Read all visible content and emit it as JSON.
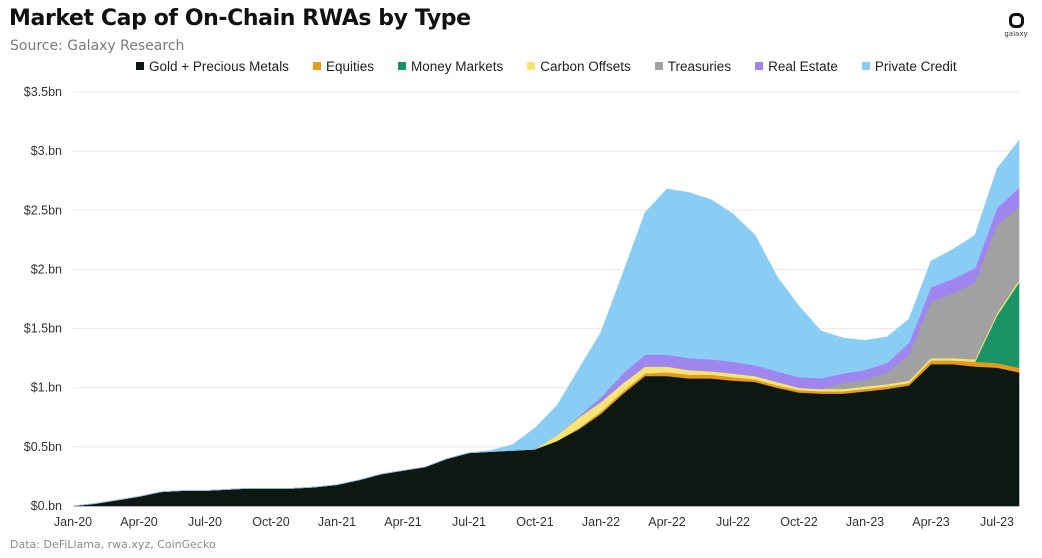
{
  "title": "Market Cap of On-Chain RWAs by Type",
  "subtitle": "Source: Galaxy Research",
  "logo_text": "galaxy",
  "source_note": "Data: DeFiLlama, rwa.xyz, CoinGecko",
  "chart_data": {
    "type": "area",
    "stacked": true,
    "title": "Market Cap of On-Chain RWAs by Type",
    "xlabel": "",
    "ylabel": "",
    "ylim": [
      0,
      3.5
    ],
    "grid": true,
    "legend_position": "top",
    "y_tick_values": [
      0,
      0.5,
      1,
      1.5,
      2,
      2.5,
      3,
      3.5
    ],
    "y_tick_labels": [
      "$0.bn",
      "$0.5bn",
      "$1.bn",
      "$1.5bn",
      "$2.bn",
      "$2.5bn",
      "$3.bn",
      "$3.5bn"
    ],
    "x_tick_labels": [
      "Jan-20",
      "Apr-20",
      "Jul-20",
      "Oct-20",
      "Jan-21",
      "Apr-21",
      "Jul-21",
      "Oct-21",
      "Jan-22",
      "Apr-22",
      "Jul-22",
      "Oct-22",
      "Jan-23",
      "Apr-23",
      "Jul-23"
    ],
    "x": [
      "2020-01",
      "2020-02",
      "2020-03",
      "2020-04",
      "2020-05",
      "2020-06",
      "2020-07",
      "2020-08",
      "2020-09",
      "2020-10",
      "2020-11",
      "2020-12",
      "2021-01",
      "2021-02",
      "2021-03",
      "2021-04",
      "2021-05",
      "2021-06",
      "2021-07",
      "2021-08",
      "2021-09",
      "2021-10",
      "2021-11",
      "2021-12",
      "2022-01",
      "2022-02",
      "2022-03",
      "2022-04",
      "2022-05",
      "2022-06",
      "2022-07",
      "2022-08",
      "2022-09",
      "2022-10",
      "2022-11",
      "2022-12",
      "2023-01",
      "2023-02",
      "2023-03",
      "2023-04",
      "2023-05",
      "2023-06",
      "2023-07",
      "2023-08"
    ],
    "series": [
      {
        "name": "Gold + Precious Metals",
        "color": "#0e1813",
        "values": [
          0,
          0.02,
          0.05,
          0.08,
          0.12,
          0.13,
          0.13,
          0.14,
          0.15,
          0.15,
          0.15,
          0.16,
          0.18,
          0.22,
          0.27,
          0.3,
          0.33,
          0.4,
          0.45,
          0.46,
          0.47,
          0.48,
          0.55,
          0.65,
          0.78,
          0.95,
          1.1,
          1.1,
          1.08,
          1.08,
          1.06,
          1.05,
          1.0,
          0.96,
          0.95,
          0.95,
          0.97,
          0.99,
          1.02,
          1.2,
          1.2,
          1.18,
          1.17,
          1.13
        ]
      },
      {
        "name": "Equities",
        "color": "#e59a1c",
        "values": [
          0,
          0,
          0,
          0,
          0,
          0,
          0,
          0,
          0,
          0,
          0,
          0,
          0,
          0,
          0,
          0,
          0,
          0,
          0,
          0,
          0,
          0,
          0,
          0.01,
          0.02,
          0.02,
          0.02,
          0.03,
          0.03,
          0.03,
          0.03,
          0.02,
          0.02,
          0.02,
          0.02,
          0.02,
          0.02,
          0.02,
          0.02,
          0.03,
          0.03,
          0.04,
          0.04,
          0.04
        ]
      },
      {
        "name": "Money Markets",
        "color": "#1a9467",
        "values": [
          0,
          0,
          0,
          0,
          0,
          0,
          0,
          0,
          0,
          0,
          0,
          0,
          0,
          0,
          0,
          0,
          0,
          0,
          0,
          0,
          0,
          0,
          0,
          0,
          0,
          0,
          0,
          0,
          0,
          0,
          0,
          0,
          0,
          0,
          0,
          0,
          0,
          0,
          0,
          0,
          0,
          0,
          0.4,
          0.72
        ]
      },
      {
        "name": "Carbon Offsets",
        "color": "#f8e474",
        "values": [
          0,
          0,
          0,
          0,
          0,
          0,
          0,
          0,
          0,
          0,
          0,
          0,
          0,
          0,
          0,
          0,
          0,
          0,
          0,
          0,
          0,
          0,
          0.05,
          0.09,
          0.08,
          0.07,
          0.06,
          0.05,
          0.04,
          0.03,
          0.03,
          0.03,
          0.03,
          0.02,
          0.02,
          0.02,
          0.02,
          0.02,
          0.02,
          0.02,
          0.02,
          0.02,
          0.02,
          0.02
        ]
      },
      {
        "name": "Treasuries",
        "color": "#a1a1a1",
        "values": [
          0,
          0,
          0,
          0,
          0,
          0,
          0,
          0,
          0,
          0,
          0,
          0,
          0,
          0,
          0,
          0,
          0,
          0,
          0,
          0,
          0,
          0,
          0,
          0,
          0,
          0,
          0,
          0,
          0,
          0,
          0,
          0,
          0,
          0,
          0,
          0.05,
          0.06,
          0.1,
          0.22,
          0.48,
          0.55,
          0.65,
          0.75,
          0.62
        ]
      },
      {
        "name": "Real Estate",
        "color": "#9f85ef",
        "values": [
          0,
          0,
          0,
          0,
          0,
          0,
          0,
          0,
          0,
          0,
          0,
          0,
          0,
          0,
          0,
          0,
          0,
          0,
          0,
          0,
          0,
          0,
          0,
          0.01,
          0.04,
          0.08,
          0.1,
          0.1,
          0.1,
          0.1,
          0.1,
          0.09,
          0.09,
          0.09,
          0.09,
          0.08,
          0.08,
          0.08,
          0.1,
          0.12,
          0.12,
          0.12,
          0.14,
          0.16
        ]
      },
      {
        "name": "Private Credit",
        "color": "#89cdf5",
        "values": [
          0,
          0,
          0,
          0,
          0,
          0,
          0,
          0,
          0,
          0,
          0,
          0,
          0,
          0,
          0,
          0,
          0,
          0,
          0,
          0.01,
          0.05,
          0.18,
          0.25,
          0.4,
          0.55,
          0.85,
          1.2,
          1.4,
          1.4,
          1.35,
          1.25,
          1.1,
          0.8,
          0.6,
          0.4,
          0.3,
          0.25,
          0.22,
          0.2,
          0.22,
          0.25,
          0.28,
          0.33,
          0.4
        ]
      }
    ]
  }
}
